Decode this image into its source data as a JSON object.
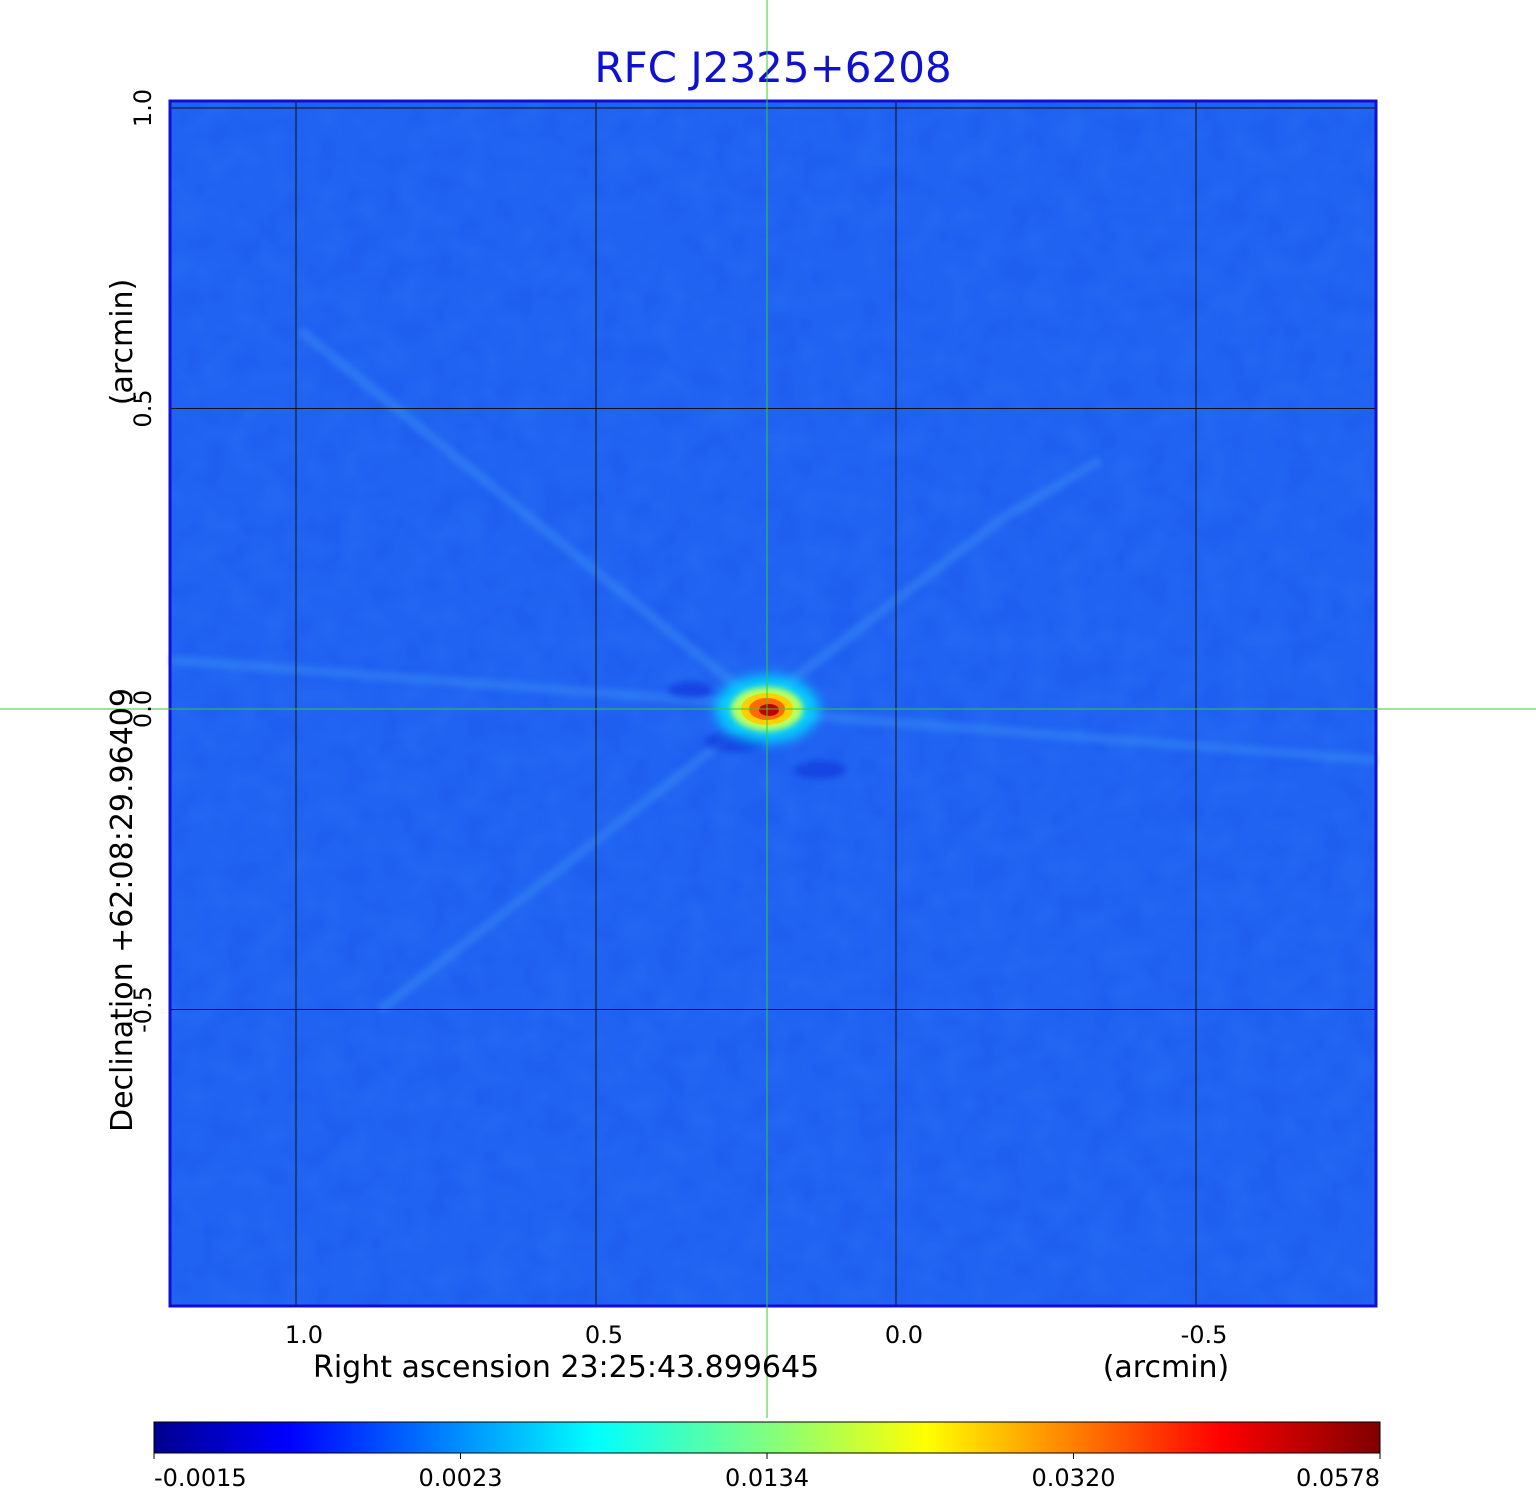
{
  "chart_data": {
    "type": "heatmap",
    "title": "RFC J2325+6208",
    "xlabel": "Right ascension  23:25:43.899645",
    "xunit": "(arcmin)",
    "ylabel": "Declination  +62:08:29.96409",
    "yunit": "(arcmin)",
    "x_ticks": [
      1.0,
      0.5,
      0.0,
      -0.5
    ],
    "x_tick_labels": [
      "1.0",
      "0.5",
      "0.0",
      "-0.5"
    ],
    "y_ticks": [
      1.0,
      0.5,
      0.0,
      -0.5
    ],
    "y_tick_labels": [
      "1.0",
      "0.5",
      "0.0",
      "-0.5"
    ],
    "xlim": [
      1.21,
      -0.8
    ],
    "ylim": [
      -1.0,
      1.0
    ],
    "grid": true,
    "crosshair": {
      "x": 0.215,
      "y": 0.0,
      "color": "#33cc33"
    },
    "peak": {
      "x": 0.215,
      "y": 0.0,
      "value": 0.0578
    },
    "colormap": "jet",
    "colorbar_ticks": [
      "-0.0015",
      "0.0023",
      "0.0134",
      "0.0320",
      "0.0578"
    ],
    "colorbar_range": [
      -0.0015,
      0.0578
    ],
    "frame_color": "#1010d0"
  }
}
